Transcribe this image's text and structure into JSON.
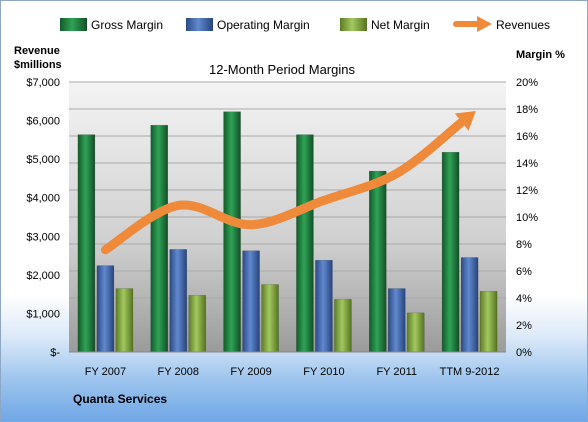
{
  "chart_data": {
    "type": "bar",
    "title": "12-Month Period Margins",
    "left_axis_label_line1": "Revenue",
    "left_axis_label_line2": "$millions",
    "right_axis_label": "Margin %",
    "company": "Quanta Services",
    "categories": [
      "FY 2007",
      "FY 2008",
      "FY 2009",
      "FY 2010",
      "FY 2011",
      "TTM 9-2012"
    ],
    "left_axis": {
      "min": 0,
      "max": 7000,
      "step": 1000,
      "tick_labels": [
        "$-",
        "$1,000",
        "$2,000",
        "$3,000",
        "$4,000",
        "$5,000",
        "$6,000",
        "$7,000"
      ]
    },
    "right_axis": {
      "min": 0,
      "max": 20,
      "step": 2,
      "tick_labels": [
        "0%",
        "2%",
        "4%",
        "6%",
        "8%",
        "10%",
        "12%",
        "14%",
        "16%",
        "18%",
        "20%"
      ]
    },
    "series": [
      {
        "name": "Gross Margin",
        "type": "bar",
        "axis": "right",
        "color": "#1e7a3c",
        "values": [
          16.1,
          16.8,
          17.8,
          16.1,
          13.4,
          14.8
        ]
      },
      {
        "name": "Operating Margin",
        "type": "bar",
        "axis": "right",
        "color": "#3f63a8",
        "values": [
          6.4,
          7.6,
          7.5,
          6.8,
          4.7,
          7.0
        ]
      },
      {
        "name": "Net Margin",
        "type": "bar",
        "axis": "right",
        "color": "#7ea33e",
        "values": [
          4.7,
          4.2,
          5.0,
          3.9,
          2.9,
          4.5
        ]
      },
      {
        "name": "Revenues",
        "type": "line",
        "axis": "left",
        "color": "#ee8a3a",
        "values": [
          2650,
          3800,
          3300,
          3930,
          4630,
          6120
        ]
      }
    ],
    "grid": true,
    "legend_position": "top"
  }
}
